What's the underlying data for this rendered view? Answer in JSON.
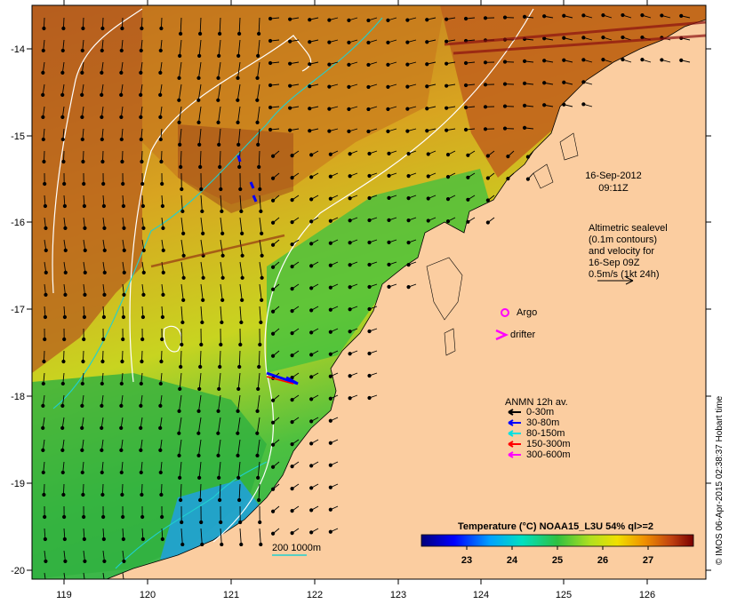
{
  "map": {
    "x_ticks": [
      "119",
      "120",
      "121",
      "122",
      "123",
      "124",
      "125",
      "126"
    ],
    "y_ticks": [
      "-14",
      "-15",
      "-16",
      "-17",
      "-18",
      "-19",
      "-20"
    ],
    "date_line1": "16-Sep-2012",
    "date_line2": "09:11Z",
    "altimetry_lines": [
      "Altimetric sealevel",
      "(0.1m contours)",
      "and velocity for",
      "16-Sep 09Z",
      "0.5m/s (1kt 24h)"
    ],
    "legend_argo": "Argo",
    "legend_drifter": "drifter",
    "anmn_title": "ANMN 12h av.",
    "anmn_items": [
      {
        "label": "0-30m",
        "color": "#000000"
      },
      {
        "label": "30-80m",
        "color": "#0000ff"
      },
      {
        "label": "80-150m",
        "color": "#00e0e0"
      },
      {
        "label": "150-300m",
        "color": "#ff0000"
      },
      {
        "label": "300-600m",
        "color": "#ff00ff"
      }
    ],
    "isobath_label": "200  1000m",
    "colorbar": {
      "title": "Temperature (°C) NOAA15_L3U 54% ql>=2",
      "ticks": [
        "23",
        "24",
        "25",
        "26",
        "27"
      ]
    },
    "credit": "© IMOS 06-Apr-2015 02:38:37 Hobart time",
    "colors": {
      "land": "#fbcda0",
      "warm": "#b5581c",
      "mid": "#e8c800",
      "cool": "#2db84a",
      "cold": "#1e7fd8"
    }
  }
}
